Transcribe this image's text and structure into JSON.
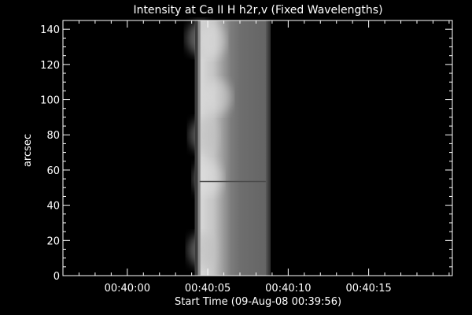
{
  "chart_data": {
    "type": "heatmap",
    "title": "Intensity at Ca II H h2r,v (Fixed Wavelengths)",
    "xlabel": "Start Time (09-Aug-08 00:39:56)",
    "ylabel": "arcsec",
    "x_ticks": [
      "00:40:00",
      "00:40:05",
      "00:40:10",
      "00:40:15"
    ],
    "x_tick_seconds": [
      4,
      9,
      14,
      19
    ],
    "xlim_seconds": [
      0,
      24.2
    ],
    "y_ticks": [
      0,
      20,
      40,
      60,
      80,
      100,
      120,
      140
    ],
    "ylim": [
      0,
      145
    ],
    "image_extent_seconds": [
      8.2,
      12.9
    ],
    "colormap": "grayscale",
    "background": "#000000",
    "axis_color": "#ffffff"
  }
}
